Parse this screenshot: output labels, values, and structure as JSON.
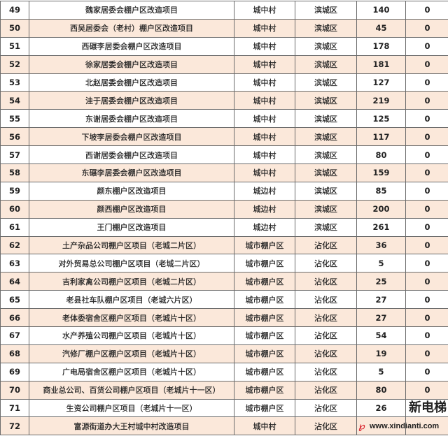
{
  "colors": {
    "alt_row": "#fbe8da",
    "border": "#6b6b6b"
  },
  "rows": [
    {
      "no": "49",
      "name": "魏家居委会棚户区改造项目",
      "type": "城中村",
      "district": "滨城区",
      "count": "140",
      "zero": "0"
    },
    {
      "no": "50",
      "name": "西吴居委会（老村）棚户区改造项目",
      "type": "城中村",
      "district": "滨城区",
      "count": "45",
      "zero": "0"
    },
    {
      "no": "51",
      "name": "西碾李居委会棚户区改造项目",
      "type": "城中村",
      "district": "滨城区",
      "count": "178",
      "zero": "0"
    },
    {
      "no": "52",
      "name": "徐家居委会棚户区改造项目",
      "type": "城中村",
      "district": "滨城区",
      "count": "181",
      "zero": "0"
    },
    {
      "no": "53",
      "name": "北赵居委会棚户区改造项目",
      "type": "城中村",
      "district": "滨城区",
      "count": "127",
      "zero": "0"
    },
    {
      "no": "54",
      "name": "洼于居委会棚户区改造项目",
      "type": "城中村",
      "district": "滨城区",
      "count": "219",
      "zero": "0"
    },
    {
      "no": "55",
      "name": "东谢居委会棚户区改造项目",
      "type": "城中村",
      "district": "滨城区",
      "count": "125",
      "zero": "0"
    },
    {
      "no": "56",
      "name": "下坡李居委会棚户区改造项目",
      "type": "城中村",
      "district": "滨城区",
      "count": "117",
      "zero": "0"
    },
    {
      "no": "57",
      "name": "西谢居委会棚户区改造项目",
      "type": "城中村",
      "district": "滨城区",
      "count": "80",
      "zero": "0"
    },
    {
      "no": "58",
      "name": "东碾李居委会棚户区改造项目",
      "type": "城中村",
      "district": "滨城区",
      "count": "159",
      "zero": "0"
    },
    {
      "no": "59",
      "name": "颜东棚户区改造项目",
      "type": "城边村",
      "district": "滨城区",
      "count": "85",
      "zero": "0"
    },
    {
      "no": "60",
      "name": "颜西棚户区改造项目",
      "type": "城边村",
      "district": "滨城区",
      "count": "200",
      "zero": "0"
    },
    {
      "no": "61",
      "name": "王门棚户区改造项目",
      "type": "城边村",
      "district": "滨城区",
      "count": "261",
      "zero": "0"
    },
    {
      "no": "62",
      "name": "土产杂品公司棚户区项目（老城二片区）",
      "type": "城市棚户区",
      "district": "沾化区",
      "count": "36",
      "zero": "0"
    },
    {
      "no": "63",
      "name": "对外贸易总公司棚户区项目（老城二片区）",
      "type": "城市棚户区",
      "district": "沾化区",
      "count": "5",
      "zero": "0"
    },
    {
      "no": "64",
      "name": "吉利家禽公司棚户区项目（老城二片区）",
      "type": "城市棚户区",
      "district": "沾化区",
      "count": "25",
      "zero": "0"
    },
    {
      "no": "65",
      "name": "老县社车队棚户区项目（老城六片区）",
      "type": "城市棚户区",
      "district": "沾化区",
      "count": "27",
      "zero": "0"
    },
    {
      "no": "66",
      "name": "老体委宿舍区棚户区项目（老城片十区）",
      "type": "城市棚户区",
      "district": "沾化区",
      "count": "27",
      "zero": "0"
    },
    {
      "no": "67",
      "name": "水产养殖公司棚户区项目（老城片十区）",
      "type": "城市棚户区",
      "district": "沾化区",
      "count": "54",
      "zero": "0"
    },
    {
      "no": "68",
      "name": "汽修厂棚户区棚户区项目（老城片十区）",
      "type": "城市棚户区",
      "district": "沾化区",
      "count": "19",
      "zero": "0"
    },
    {
      "no": "69",
      "name": "广电局宿舍区棚户区项目（老城片十区）",
      "type": "城市棚户区",
      "district": "沾化区",
      "count": "5",
      "zero": "0"
    },
    {
      "no": "70",
      "name": "商业总公司、百货公司棚户区项目（老城片十一区）",
      "type": "城市棚户区",
      "district": "沾化区",
      "count": "80",
      "zero": "0"
    },
    {
      "no": "71",
      "name": "生资公司棚户区项目（老城片十一区）",
      "type": "城市棚户区",
      "district": "沾化区",
      "count": "26",
      "zero": ""
    },
    {
      "no": "72",
      "name": "富源街道办大王村城中村改造项目",
      "type": "城中村",
      "district": "沾化区",
      "count": "",
      "zero": ""
    }
  ],
  "watermark": {
    "brand": "新电梯",
    "url": "www.xindianti.com"
  }
}
